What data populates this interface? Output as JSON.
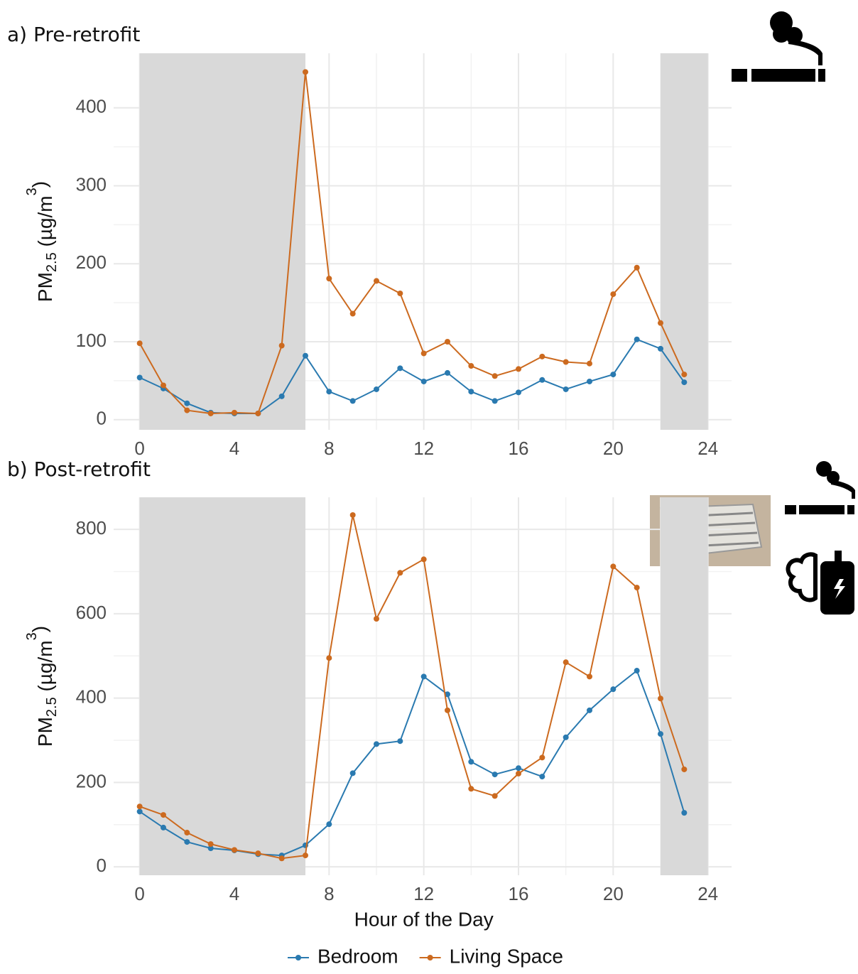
{
  "chart_data": [
    {
      "type": "line",
      "title": "a) Pre-retrofit",
      "ylabel": [
        "PM",
        "2.5",
        " (µg/m",
        "3",
        ")"
      ],
      "x": [
        0,
        1,
        2,
        3,
        4,
        5,
        6,
        7,
        8,
        9,
        10,
        11,
        12,
        13,
        14,
        15,
        16,
        17,
        18,
        19,
        20,
        21,
        22,
        23
      ],
      "series": [
        {
          "color": "#2a7ab0",
          "values": [
            54,
            40,
            21,
            9,
            8,
            8,
            30,
            82,
            36,
            24,
            39,
            66,
            49,
            60,
            36,
            24,
            35,
            51,
            39,
            49,
            58,
            103,
            91,
            48
          ]
        },
        {
          "color": "#cc6a1f",
          "values": [
            98,
            44,
            12,
            8,
            9,
            8,
            95,
            446,
            181,
            136,
            178,
            162,
            85,
            100,
            69,
            56,
            65,
            81,
            74,
            72,
            161,
            195,
            124,
            58
          ]
        }
      ],
      "shaded_ranges": [
        [
          0,
          7
        ],
        [
          22,
          24
        ]
      ],
      "xlim": [
        -1.1,
        25
      ],
      "xticks": [
        0,
        4,
        8,
        12,
        16,
        20,
        24
      ],
      "ylim": [
        -13,
        470
      ],
      "yticks": [
        0,
        100,
        200,
        300,
        400
      ],
      "grid": true
    },
    {
      "type": "line",
      "title": "b) Post-retrofit",
      "ylabel": [
        "PM",
        "2.5",
        " (µg/m",
        "3",
        ")"
      ],
      "xlabel": "Hour of the Day",
      "x": [
        0,
        1,
        2,
        3,
        4,
        5,
        6,
        7,
        8,
        9,
        10,
        11,
        12,
        13,
        14,
        15,
        16,
        17,
        18,
        19,
        20,
        21,
        22,
        23
      ],
      "series": [
        {
          "name": "Bedroom",
          "color": "#2a7ab0",
          "values": [
            131,
            93,
            59,
            44,
            39,
            30,
            27,
            51,
            101,
            222,
            291,
            298,
            451,
            409,
            249,
            219,
            234,
            214,
            307,
            371,
            421,
            465,
            315,
            128
          ]
        },
        {
          "name": "Living Space",
          "color": "#cc6a1f",
          "values": [
            143,
            123,
            81,
            54,
            40,
            32,
            20,
            27,
            495,
            834,
            588,
            697,
            729,
            371,
            185,
            168,
            221,
            259,
            485,
            451,
            712,
            662,
            399,
            231
          ]
        }
      ],
      "shaded_ranges": [
        [
          0,
          7
        ],
        [
          22,
          24
        ]
      ],
      "xlim": [
        -1.1,
        25
      ],
      "xticks": [
        0,
        4,
        8,
        12,
        16,
        20,
        24
      ],
      "ylim": [
        -20,
        876
      ],
      "yticks": [
        0,
        200,
        400,
        600,
        800
      ],
      "grid": true
    }
  ]
}
